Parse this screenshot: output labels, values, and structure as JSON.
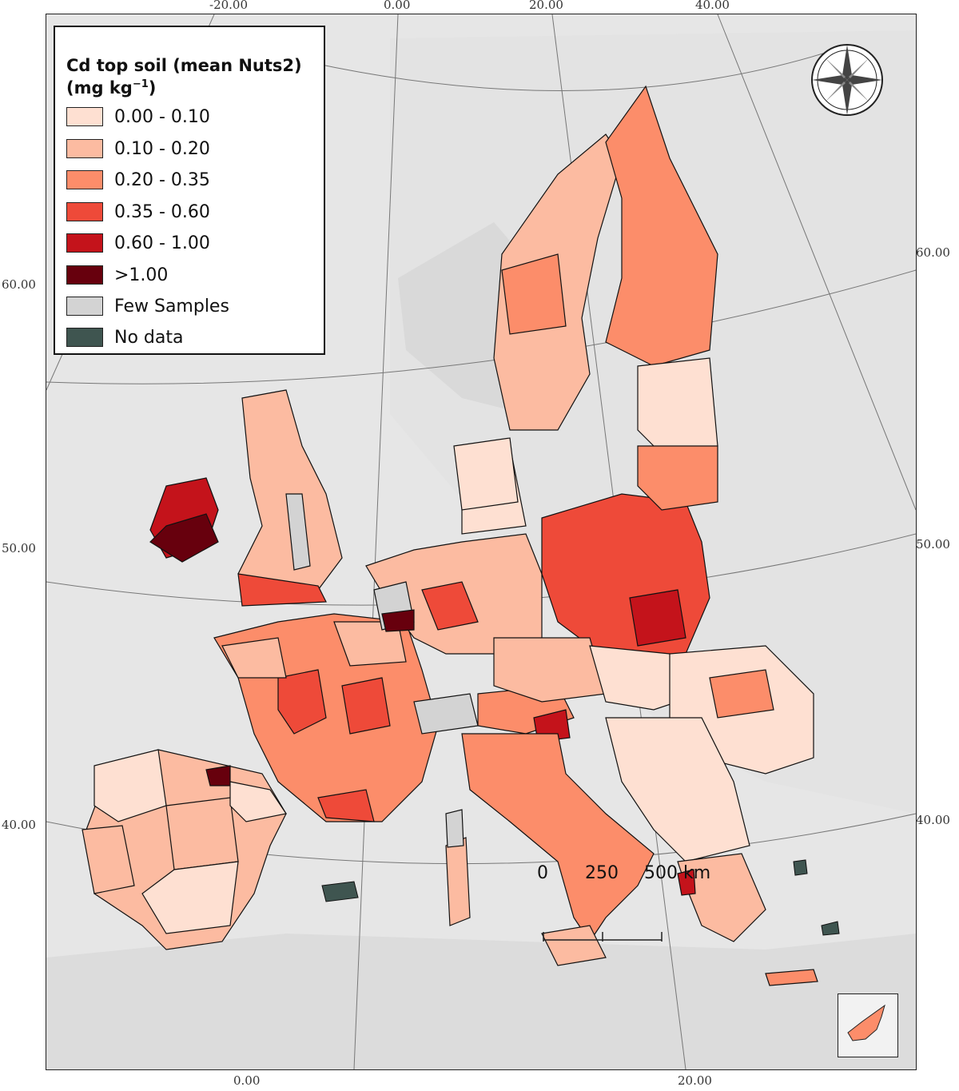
{
  "legend": {
    "title_line1": "Cd top soil (mean Nuts2)",
    "title_line2_prefix": "(mg kg",
    "title_line2_sup": "−1",
    "title_line2_suffix": ")",
    "items": [
      {
        "label": "0.00 - 0.10",
        "color": "#fee0d2"
      },
      {
        "label": "0.10 - 0.20",
        "color": "#fcbba1"
      },
      {
        "label": "0.20 - 0.35",
        "color": "#fc8d6a"
      },
      {
        "label": "0.35 - 0.60",
        "color": "#ee4a39"
      },
      {
        "label": "0.60 - 1.00",
        "color": "#c4131b"
      },
      {
        "label": ">1.00",
        "color": "#67000d"
      },
      {
        "label": "Few Samples",
        "color": "#d3d3d3"
      },
      {
        "label": "No data",
        "color": "#3f5550"
      }
    ]
  },
  "graticule": {
    "top_labels": [
      "-20.00",
      "0.00",
      "20.00",
      "40.00"
    ],
    "bottom_labels": [
      "0.00",
      "20.00"
    ],
    "left_labels": [
      "60.00",
      "50.00",
      "40.00"
    ],
    "right_labels": [
      "60.00",
      "50.00",
      "40.00"
    ]
  },
  "scale_bar": {
    "labels": [
      "0",
      "250",
      "500 km"
    ]
  },
  "colors": {
    "background_land": "#e6e6e6",
    "sea": "#ffffff",
    "border": "#111111"
  }
}
